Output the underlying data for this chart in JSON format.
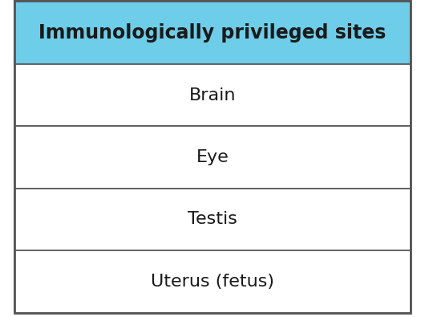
{
  "title": "Immunologically privileged sites",
  "rows": [
    "Brain",
    "Eye",
    "Testis",
    "Uterus (fetus)"
  ],
  "header_bg_color": "#6ECDE8",
  "header_text_color": "#1a1a1a",
  "row_bg_color": "#ffffff",
  "row_text_color": "#1a1a1a",
  "border_color": "#555555",
  "header_fontsize": 17,
  "row_fontsize": 16,
  "fig_width": 5.3,
  "fig_height": 3.95,
  "dpi": 100
}
